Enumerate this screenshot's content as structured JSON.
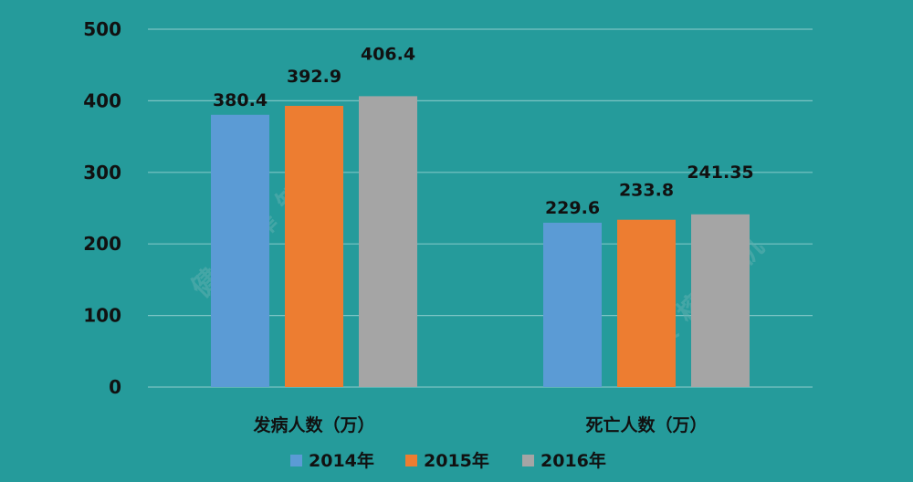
{
  "colors": {
    "background": "#259b9b",
    "grid": "#7cc4c4",
    "text": "#111111"
  },
  "watermark": {
    "text": "健康榨知机"
  },
  "chart_data": {
    "type": "bar",
    "categories": [
      "发病人数（万）",
      "死亡人数（万）"
    ],
    "series": [
      {
        "name": "2014年",
        "color": "#5b9bd5",
        "values": [
          380.4,
          229.6
        ],
        "labels": [
          "380.4",
          "229.6"
        ]
      },
      {
        "name": "2015年",
        "color": "#ed7d31",
        "values": [
          392.9,
          233.8
        ],
        "labels": [
          "392.9",
          "233.8"
        ]
      },
      {
        "name": "2016年",
        "color": "#a5a5a5",
        "values": [
          406.4,
          241.35
        ],
        "labels": [
          "406.4",
          "241.35"
        ]
      }
    ],
    "ylim": [
      0,
      500
    ],
    "yticks": [
      "0",
      "100",
      "200",
      "300",
      "400",
      "500"
    ],
    "grid": true,
    "legend_position": "bottom"
  }
}
